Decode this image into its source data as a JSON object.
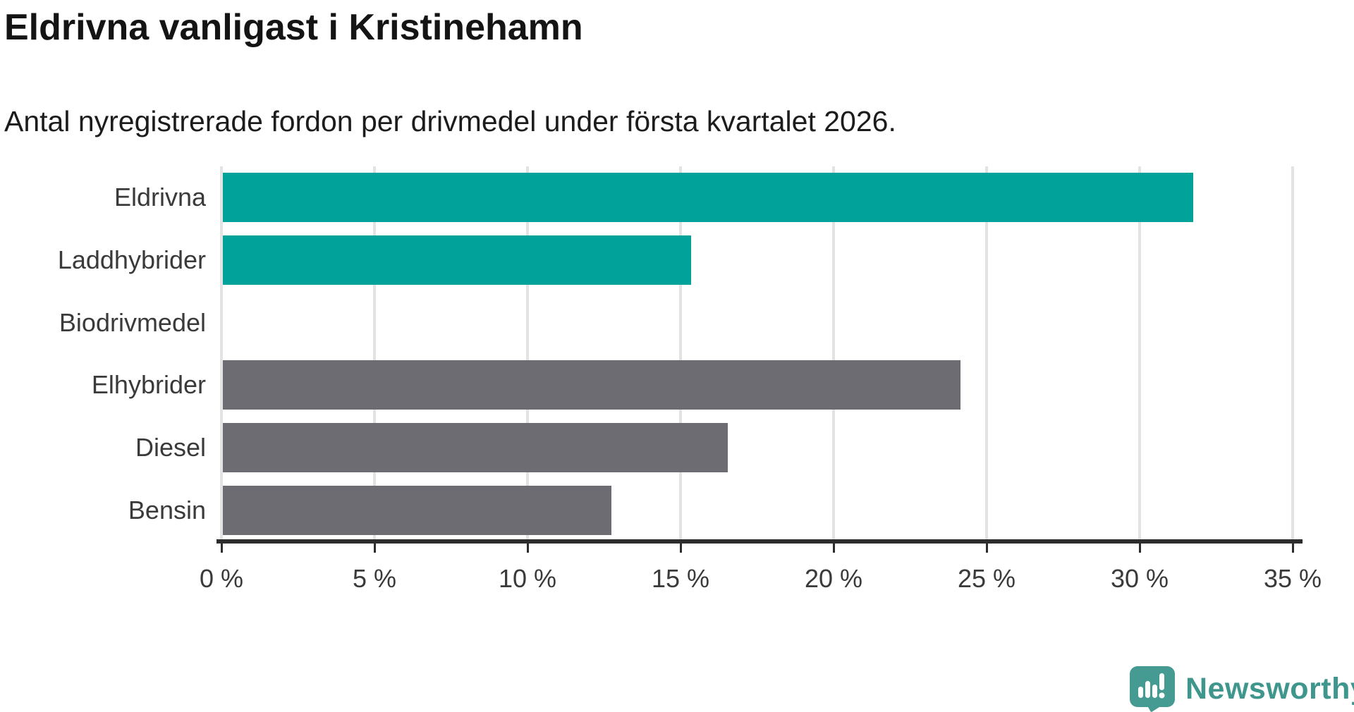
{
  "header": {
    "title": "Eldrivna vanligast i Kristinehamn",
    "subtitle": "Antal nyregistrerade fordon per drivmedel under första kvartalet 2026."
  },
  "chart_data": {
    "type": "bar",
    "orientation": "horizontal",
    "title": "Eldrivna vanligast i Kristinehamn",
    "subtitle": "Antal nyregistrerade fordon per drivmedel under första kvartalet 2026.",
    "categories": [
      "Eldrivna",
      "Laddhybrider",
      "Biodrivmedel",
      "Elhybrider",
      "Diesel",
      "Bensin"
    ],
    "values": [
      31.7,
      15.3,
      0,
      24.1,
      16.5,
      12.7
    ],
    "unit": "%",
    "bar_colors": [
      "#00a29a",
      "#00a29a",
      "#00a29a",
      "#6c6c72",
      "#6c6c72",
      "#6c6c72"
    ],
    "xlabel": "",
    "ylabel": "",
    "x_tick_values": [
      0,
      5,
      10,
      15,
      20,
      25,
      30,
      35
    ],
    "x_tick_labels": [
      "0 %",
      "5 %",
      "10 %",
      "15 %",
      "20 %",
      "25 %",
      "30 %",
      "35 %"
    ],
    "xlim": [
      0,
      35.2
    ],
    "grid": true,
    "legend": "none",
    "accent_color": "#00a29a",
    "neutral_color": "#6c6c72",
    "gridline_color": "#e3e3e3",
    "axis_color": "#2d2d2d"
  },
  "footer": {
    "brand": "Newsworthy",
    "brand_color": "#3e968c",
    "logo_color": "#459a92"
  }
}
